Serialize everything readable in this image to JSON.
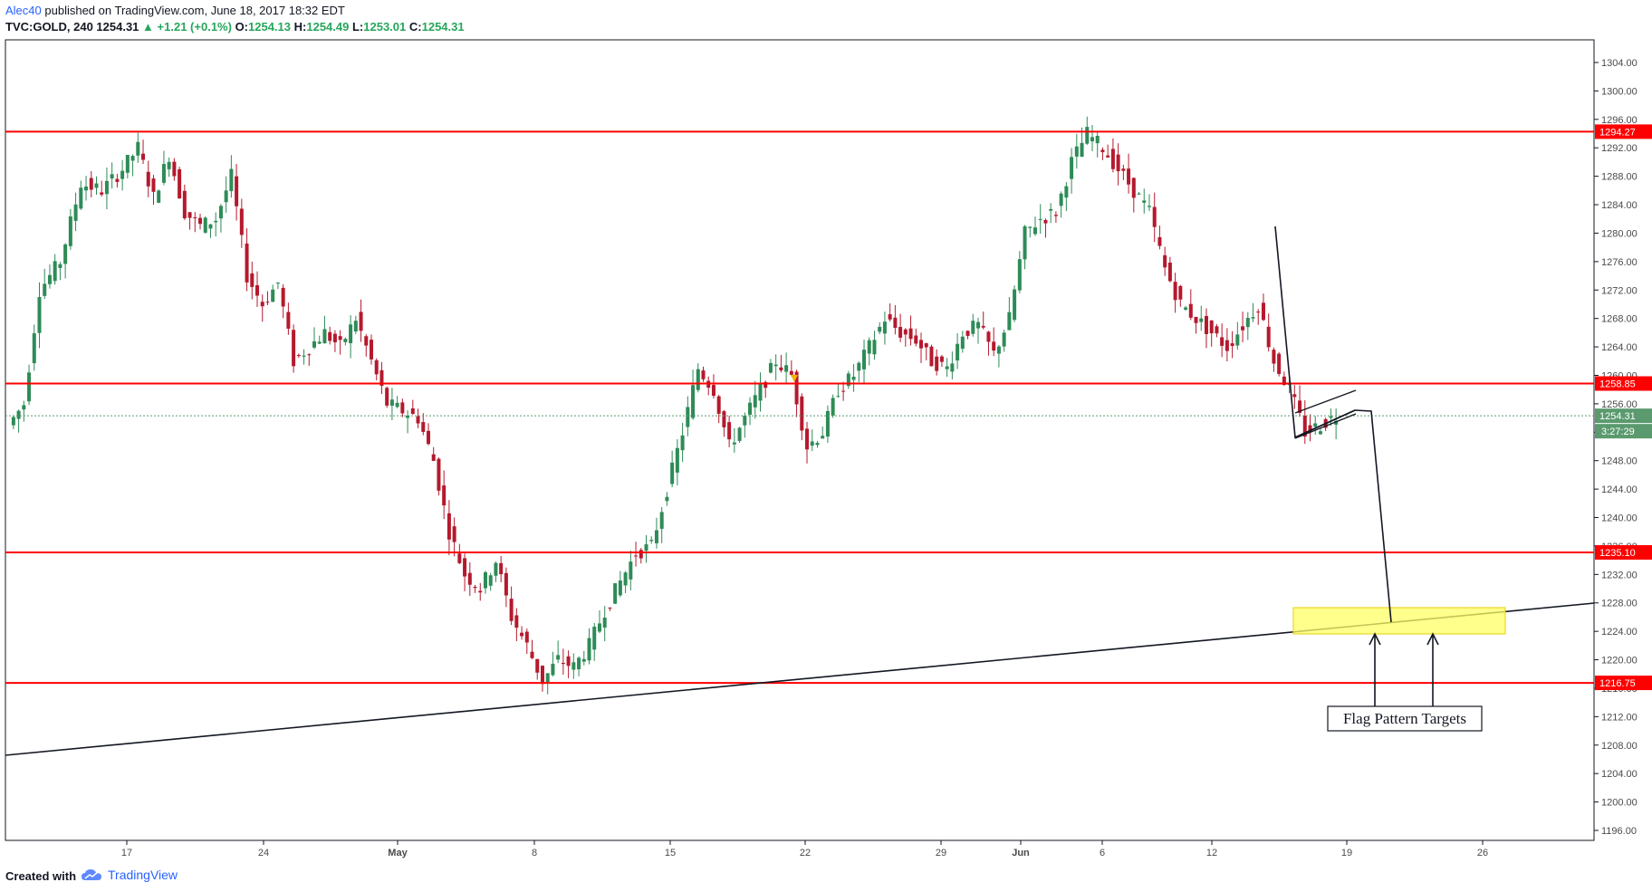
{
  "header": {
    "author": "Alec40",
    "published": "published on TradingView.com, June 18, 2017 18:32 EDT",
    "symbol": "TVC:GOLD, 240",
    "last": "1254.31",
    "change_arrow": "▲",
    "change": "+1.21 (+0.1%)",
    "o_label": "O:",
    "o_value": "1254.13",
    "h_label": "H:",
    "h_value": "1254.49",
    "l_label": "L:",
    "l_value": "1253.01",
    "c_label": "C:",
    "c_value": "1254.31"
  },
  "footer": {
    "created_with": "Created with",
    "brand": "TradingView",
    "brand_icon": "tradingview-cloud-icon"
  },
  "colors": {
    "up": "#2e8b57",
    "down": "#b5192d",
    "level_line": "#ff0000",
    "trend_line": "#131722",
    "target_zone": "#ffff66",
    "price_tag": "#5b9a6f",
    "timer_tag": "#5b9a6f",
    "grid_text": "#4a4a4a"
  },
  "chart_data": {
    "type": "candlestick",
    "symbol": "TVC:GOLD",
    "interval": "240",
    "ylim": [
      1195,
      1307
    ],
    "y_ticks": [
      1196.0,
      1200.0,
      1204.0,
      1208.0,
      1212.0,
      1216.0,
      1220.0,
      1224.0,
      1228.0,
      1232.0,
      1236.0,
      1240.0,
      1244.0,
      1248.0,
      1252.0,
      1256.0,
      1260.0,
      1264.0,
      1268.0,
      1272.0,
      1276.0,
      1280.0,
      1284.0,
      1288.0,
      1292.0,
      1296.0,
      1300.0,
      1304.0
    ],
    "x_ticks": [
      "17",
      "24",
      "May",
      "8",
      "15",
      "22",
      "29",
      "Jun",
      "6",
      "12",
      "19",
      "26"
    ],
    "horizontal_levels": [
      {
        "value": 1294.27,
        "label": "1294.27"
      },
      {
        "value": 1258.85,
        "label": "1258.85"
      },
      {
        "value": 1235.1,
        "label": "1235.10"
      },
      {
        "value": 1216.75,
        "label": "1216.75"
      }
    ],
    "last_price": {
      "value": 1254.31,
      "label": "1254.31",
      "timer": "3:27:29"
    },
    "annotation": "Flag Pattern Targets",
    "price_path": [
      [
        0,
        1253
      ],
      [
        3,
        1256
      ],
      [
        6,
        1272
      ],
      [
        10,
        1276
      ],
      [
        14,
        1287
      ],
      [
        18,
        1286
      ],
      [
        22,
        1289
      ],
      [
        25,
        1292
      ],
      [
        28,
        1285
      ],
      [
        31,
        1291
      ],
      [
        34,
        1283
      ],
      [
        37,
        1281
      ],
      [
        40,
        1282
      ],
      [
        43,
        1288
      ],
      [
        46,
        1274
      ],
      [
        49,
        1270
      ],
      [
        52,
        1273
      ],
      [
        55,
        1262
      ],
      [
        58,
        1264
      ],
      [
        61,
        1266
      ],
      [
        64,
        1264
      ],
      [
        67,
        1268
      ],
      [
        70,
        1262
      ],
      [
        73,
        1256
      ],
      [
        76,
        1255
      ],
      [
        79,
        1254
      ],
      [
        82,
        1248
      ],
      [
        85,
        1238
      ],
      [
        88,
        1232
      ],
      [
        91,
        1230
      ],
      [
        94,
        1234
      ],
      [
        97,
        1226
      ],
      [
        100,
        1222
      ],
      [
        103,
        1217
      ],
      [
        106,
        1220
      ],
      [
        109,
        1219
      ],
      [
        112,
        1222
      ],
      [
        115,
        1227
      ],
      [
        118,
        1231
      ],
      [
        121,
        1235
      ],
      [
        124,
        1236
      ],
      [
        127,
        1244
      ],
      [
        130,
        1252
      ],
      [
        133,
        1261
      ],
      [
        136,
        1258
      ],
      [
        139,
        1250
      ],
      [
        142,
        1254
      ],
      [
        145,
        1258
      ],
      [
        148,
        1262
      ],
      [
        151,
        1260
      ],
      [
        154,
        1250
      ],
      [
        157,
        1252
      ],
      [
        160,
        1258
      ],
      [
        163,
        1260
      ],
      [
        166,
        1264
      ],
      [
        169,
        1268
      ],
      [
        172,
        1266
      ],
      [
        175,
        1265
      ],
      [
        178,
        1262
      ],
      [
        181,
        1261
      ],
      [
        184,
        1266
      ],
      [
        187,
        1267
      ],
      [
        190,
        1263
      ],
      [
        193,
        1268
      ],
      [
        196,
        1280
      ],
      [
        199,
        1282
      ],
      [
        202,
        1283
      ],
      [
        205,
        1290
      ],
      [
        208,
        1294
      ],
      [
        211,
        1292
      ],
      [
        214,
        1289
      ],
      [
        217,
        1286
      ],
      [
        220,
        1283
      ],
      [
        223,
        1275
      ],
      [
        226,
        1270
      ],
      [
        229,
        1268
      ],
      [
        232,
        1266
      ],
      [
        235,
        1264
      ],
      [
        238,
        1267
      ],
      [
        241,
        1270
      ],
      [
        244,
        1262
      ],
      [
        247,
        1258
      ],
      [
        250,
        1252
      ],
      [
        253,
        1253
      ],
      [
        256,
        1254.31
      ]
    ]
  }
}
